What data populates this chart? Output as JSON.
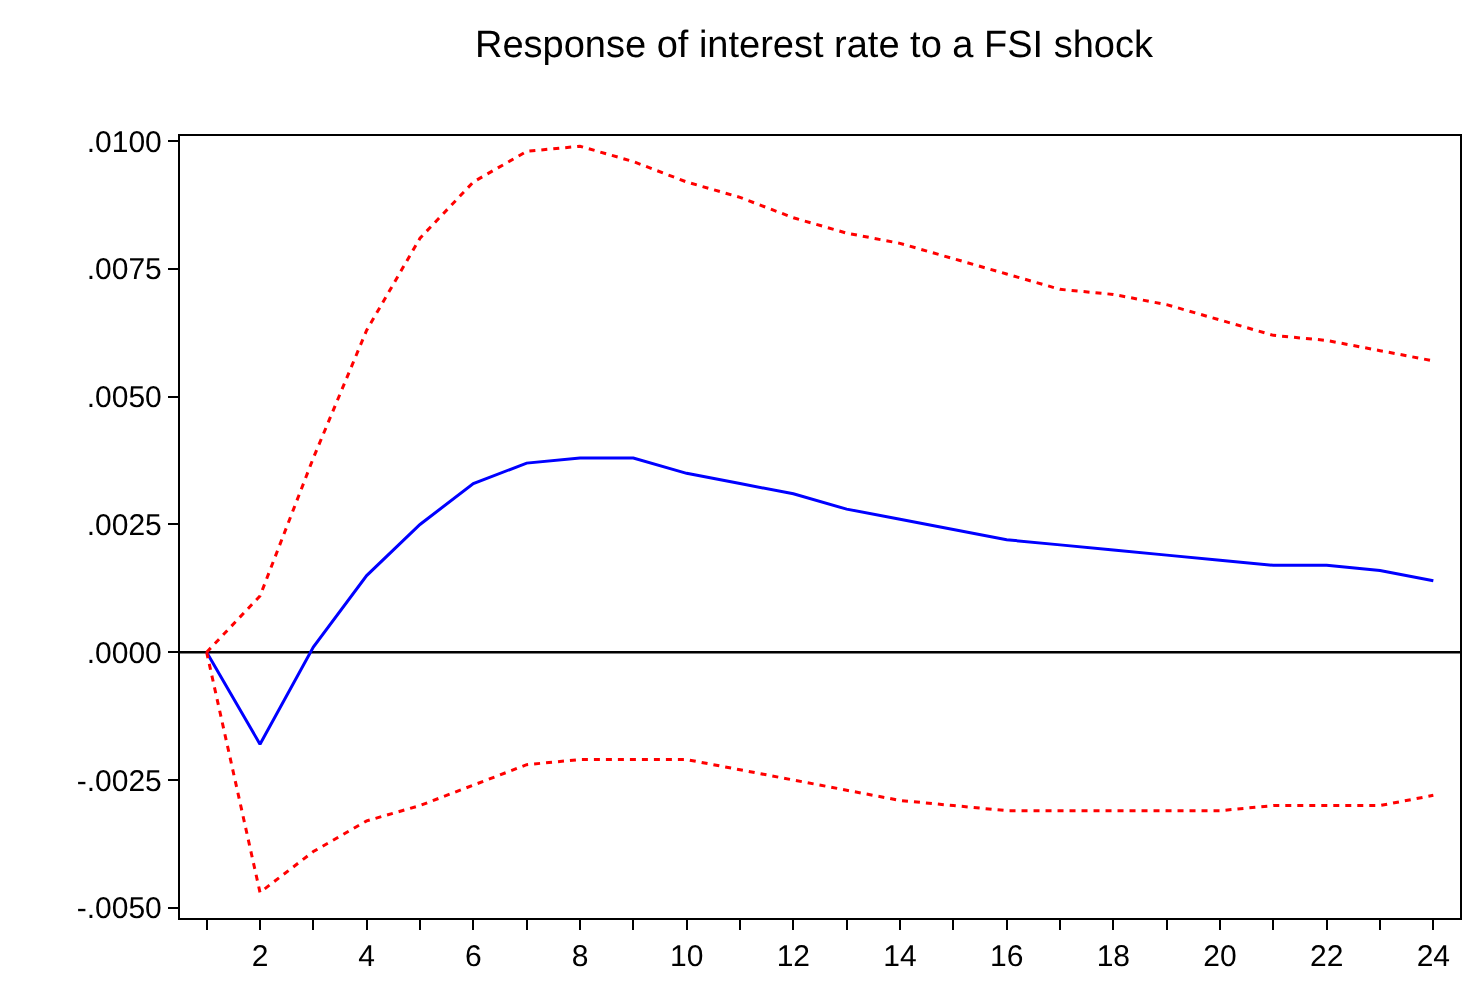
{
  "chart_data": {
    "type": "line",
    "title": "Response of interest rate to a FSI shock",
    "x": [
      1,
      2,
      3,
      4,
      5,
      6,
      7,
      8,
      9,
      10,
      11,
      12,
      13,
      14,
      15,
      16,
      17,
      18,
      19,
      20,
      21,
      22,
      23,
      24
    ],
    "series": [
      {
        "color": "#0000ff",
        "line_style": "solid",
        "values": [
          0,
          -0.0018,
          0.0001,
          0.0015,
          0.0025,
          0.0033,
          0.0037,
          0.0038,
          0.0038,
          0.0035,
          0.0033,
          0.0031,
          0.0028,
          0.0026,
          0.0024,
          0.0022,
          0.0021,
          0.002,
          0.0019,
          0.0018,
          0.0017,
          0.0017,
          0.0016,
          0.0014
        ]
      },
      {
        "color": "#ff0000",
        "line_style": "dotted",
        "values": [
          0,
          0.0011,
          0.0038,
          0.0063,
          0.0081,
          0.0092,
          0.0098,
          0.0099,
          0.0096,
          0.0092,
          0.0089,
          0.0085,
          0.0082,
          0.008,
          0.0077,
          0.0074,
          0.0071,
          0.007,
          0.0068,
          0.0065,
          0.0062,
          0.0061,
          0.0059,
          0.0057
        ]
      },
      {
        "color": "#ff0000",
        "line_style": "dotted",
        "values": [
          0,
          -0.0047,
          -0.0039,
          -0.0033,
          -0.003,
          -0.0026,
          -0.0022,
          -0.0021,
          -0.0021,
          -0.0021,
          -0.0023,
          -0.0025,
          -0.0027,
          -0.0029,
          -0.003,
          -0.0031,
          -0.0031,
          -0.0031,
          -0.0031,
          -0.0031,
          -0.003,
          -0.003,
          -0.003,
          -0.0028
        ]
      }
    ],
    "xlim": [
      0.5,
      24.5
    ],
    "xticks": [
      {
        "value": 1,
        "label": null
      },
      2,
      {
        "value": 3,
        "label": null
      },
      4,
      {
        "value": 5,
        "label": null
      },
      6,
      {
        "value": 7,
        "label": null
      },
      8,
      {
        "value": 9,
        "label": null
      },
      10,
      {
        "value": 11,
        "label": null
      },
      12,
      {
        "value": 13,
        "label": null
      },
      14,
      {
        "value": 15,
        "label": null
      },
      16,
      {
        "value": 17,
        "label": null
      },
      18,
      {
        "value": 19,
        "label": null
      },
      20,
      {
        "value": 21,
        "label": null
      },
      22,
      {
        "value": 23,
        "label": null
      },
      24
    ],
    "ylim": [
      -0.0052,
      0.0101
    ],
    "yticks": [
      {
        "value": -0.005,
        "label": "-.0050"
      },
      {
        "value": -0.0025,
        "label": "-.0025"
      },
      {
        "value": 0,
        "label": ".0000"
      },
      {
        "value": 0.0025,
        "label": ".0025"
      },
      {
        "value": 0.005,
        "label": ".0050"
      },
      {
        "value": 0.0075,
        "label": ".0075"
      },
      {
        "value": 0.01,
        "label": ".0100"
      }
    ],
    "ref_lines": [
      {
        "axis": "y",
        "value": 0,
        "color": "#000000",
        "line_style": "solid"
      }
    ],
    "grid": false,
    "marker": "none"
  }
}
